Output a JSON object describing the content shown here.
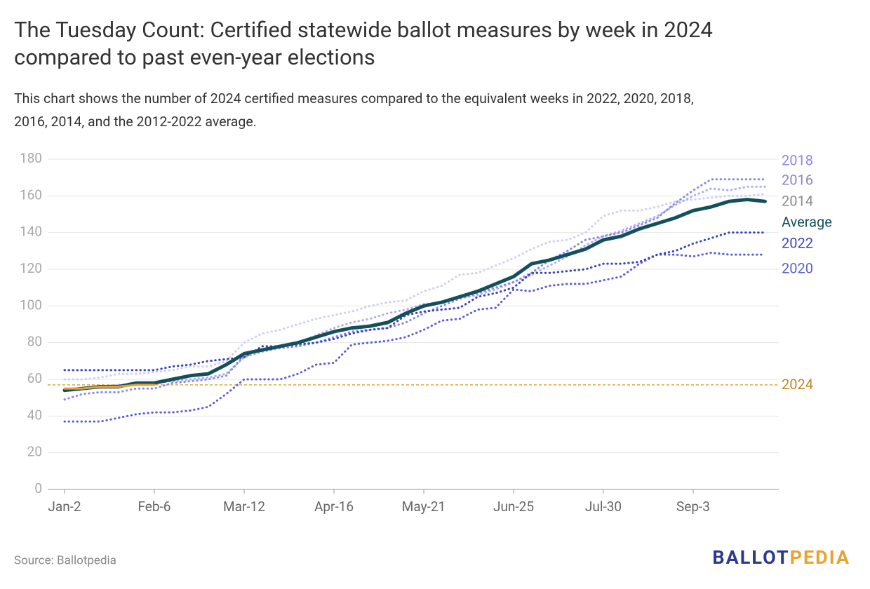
{
  "chart_data": {
    "type": "line",
    "title": [
      "The Tuesday Count: Certified statewide ballot measures by week in 2024",
      "compared to past even-year elections"
    ],
    "subtitle": [
      "This chart shows the number of 2024 certified measures compared to the equivalent weeks in 2022, 2020, 2018,",
      "2016, 2014, and the 2012-2022 average."
    ],
    "categories": [
      "Jan-2",
      null,
      null,
      null,
      null,
      "Feb-6",
      null,
      null,
      null,
      null,
      "Mar-12",
      null,
      null,
      null,
      null,
      "Apr-16",
      null,
      null,
      null,
      null,
      "May-21",
      null,
      null,
      null,
      null,
      "Jun-25",
      null,
      null,
      null,
      null,
      "Jul-30",
      null,
      null,
      null,
      null,
      "Sep-3",
      null,
      null,
      null,
      null
    ],
    "ylim": [
      0,
      180
    ],
    "yticks": [
      0,
      20,
      40,
      60,
      80,
      100,
      120,
      140,
      160,
      180
    ],
    "grid": true,
    "series": [
      {
        "name": "2014",
        "color": "#cfcff7",
        "dashed": true,
        "values": [
          60,
          60,
          61,
          63,
          63,
          64,
          65,
          67,
          67,
          70,
          80,
          85,
          87,
          90,
          93,
          95,
          97,
          100,
          102,
          103,
          108,
          111,
          117,
          118,
          122,
          126,
          131,
          135,
          136,
          140,
          149,
          152,
          152,
          154,
          157,
          158,
          159,
          160,
          160,
          161
        ]
      },
      {
        "name": "2016",
        "color": "#aeadf2",
        "dashed": true,
        "values": [
          54,
          55,
          56,
          57,
          57,
          58,
          59,
          60,
          61,
          63,
          72,
          75,
          77,
          80,
          84,
          88,
          91,
          93,
          96,
          98,
          101,
          102,
          104,
          106,
          109,
          113,
          117,
          122,
          127,
          133,
          138,
          141,
          145,
          149,
          155,
          160,
          164,
          163,
          165,
          165
        ]
      },
      {
        "name": "2018",
        "color": "#8a87ef",
        "dashed": true,
        "values": [
          49,
          52,
          53,
          53,
          55,
          55,
          58,
          59,
          60,
          62,
          73,
          76,
          77,
          78,
          80,
          83,
          86,
          87,
          88,
          91,
          96,
          100,
          104,
          107,
          110,
          113,
          118,
          125,
          130,
          136,
          138,
          140,
          144,
          148,
          156,
          163,
          169,
          169,
          169,
          169
        ]
      },
      {
        "name": "2020",
        "color": "#5c60d8",
        "dashed": true,
        "values": [
          37,
          37,
          37,
          39,
          41,
          42,
          42,
          43,
          45,
          52,
          60,
          60,
          60,
          63,
          68,
          69,
          79,
          80,
          81,
          83,
          87,
          92,
          93,
          98,
          99,
          109,
          108,
          111,
          112,
          112,
          114,
          116,
          123,
          128,
          128,
          127,
          129,
          128,
          128,
          128
        ]
      },
      {
        "name": "2022",
        "color": "#3a44b8",
        "dashed": true,
        "values": [
          65,
          65,
          65,
          65,
          65,
          65,
          67,
          68,
          70,
          71,
          72,
          78,
          78,
          79,
          80,
          82,
          85,
          87,
          88,
          95,
          97,
          98,
          99,
          105,
          107,
          110,
          118,
          118,
          119,
          120,
          123,
          123,
          124,
          128,
          130,
          134,
          137,
          140,
          140,
          140
        ]
      },
      {
        "name": "Average",
        "color": "#14505a",
        "dashed": false,
        "values": [
          54,
          55,
          56,
          56,
          58,
          58,
          60,
          62,
          63,
          68,
          74,
          76,
          78,
          80,
          83,
          86,
          88,
          89,
          91,
          96,
          100,
          102,
          105,
          108,
          112,
          116,
          123,
          125,
          128,
          131,
          136,
          138,
          142,
          145,
          148,
          152,
          154,
          157,
          158,
          157
        ]
      },
      {
        "name": "2024",
        "color": "#e3a23a",
        "dashed": false,
        "values": [
          55,
          55,
          56,
          56,
          57,
          57,
          null,
          null,
          null,
          null,
          null,
          null,
          null,
          null,
          null,
          null,
          null,
          null,
          null,
          null,
          null,
          null,
          null,
          null,
          null,
          null,
          null,
          null,
          null,
          null,
          null,
          null,
          null,
          null,
          null,
          null,
          null,
          null,
          null,
          null
        ]
      }
    ],
    "reference_line": {
      "value": 57,
      "label": "2024",
      "color": "#e3a23a"
    },
    "source": "Source: Ballotpedia",
    "logo": [
      "BALLOT",
      "PEDIA"
    ]
  }
}
